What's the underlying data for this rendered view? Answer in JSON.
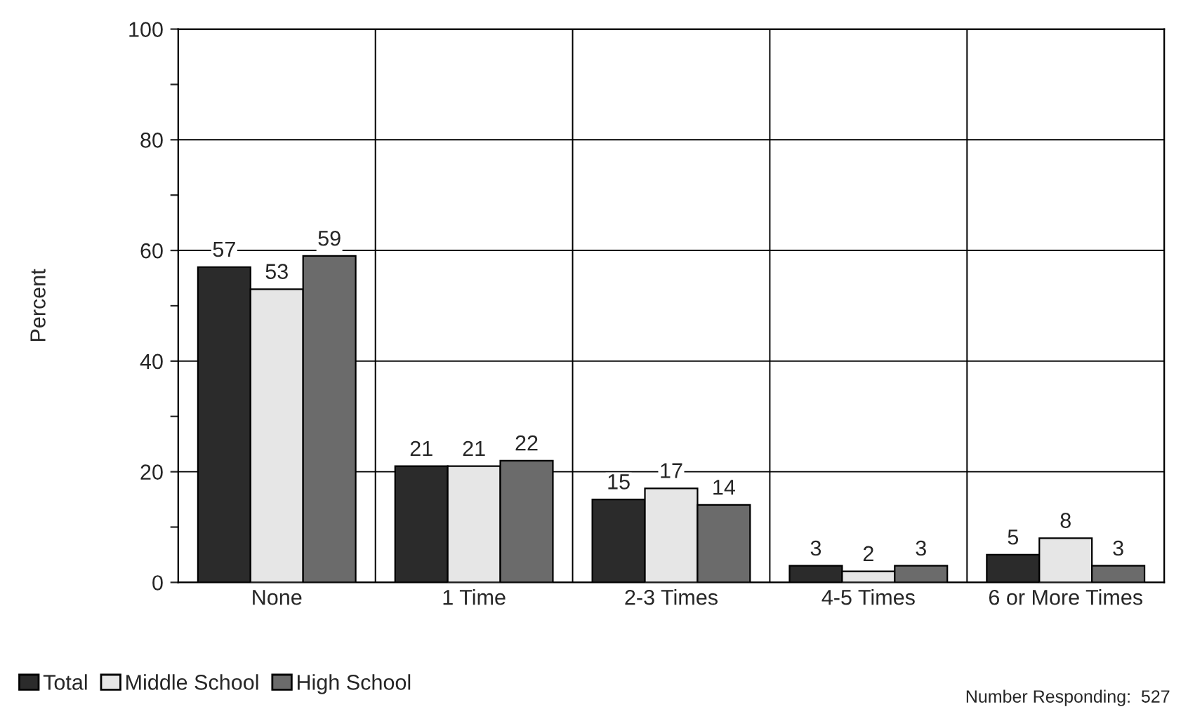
{
  "chart_data": {
    "type": "bar",
    "ylabel": "Percent",
    "categories": [
      "None",
      "1 Time",
      "2-3 Times",
      "4-5 Times",
      "6 or More Times"
    ],
    "series": [
      {
        "name": "Total",
        "color": "#2b2b2b",
        "values": [
          57,
          21,
          15,
          3,
          5
        ]
      },
      {
        "name": "Middle School",
        "color": "#e6e6e6",
        "values": [
          53,
          21,
          17,
          2,
          8
        ]
      },
      {
        "name": "High School",
        "color": "#6b6b6b",
        "values": [
          59,
          22,
          14,
          3,
          3
        ]
      }
    ],
    "ylim": [
      0,
      100
    ],
    "yticks": [
      0,
      {
        "value": 10,
        "label": null
      },
      20,
      {
        "value": 30,
        "label": null
      },
      40,
      {
        "value": 50,
        "label": null
      },
      60,
      {
        "value": 70,
        "label": null
      },
      80,
      {
        "value": 90,
        "label": null
      },
      100
    ],
    "grid": true,
    "data_labels": true,
    "legend": "bottom left",
    "annotations": [
      "Number Responding:  527"
    ]
  }
}
